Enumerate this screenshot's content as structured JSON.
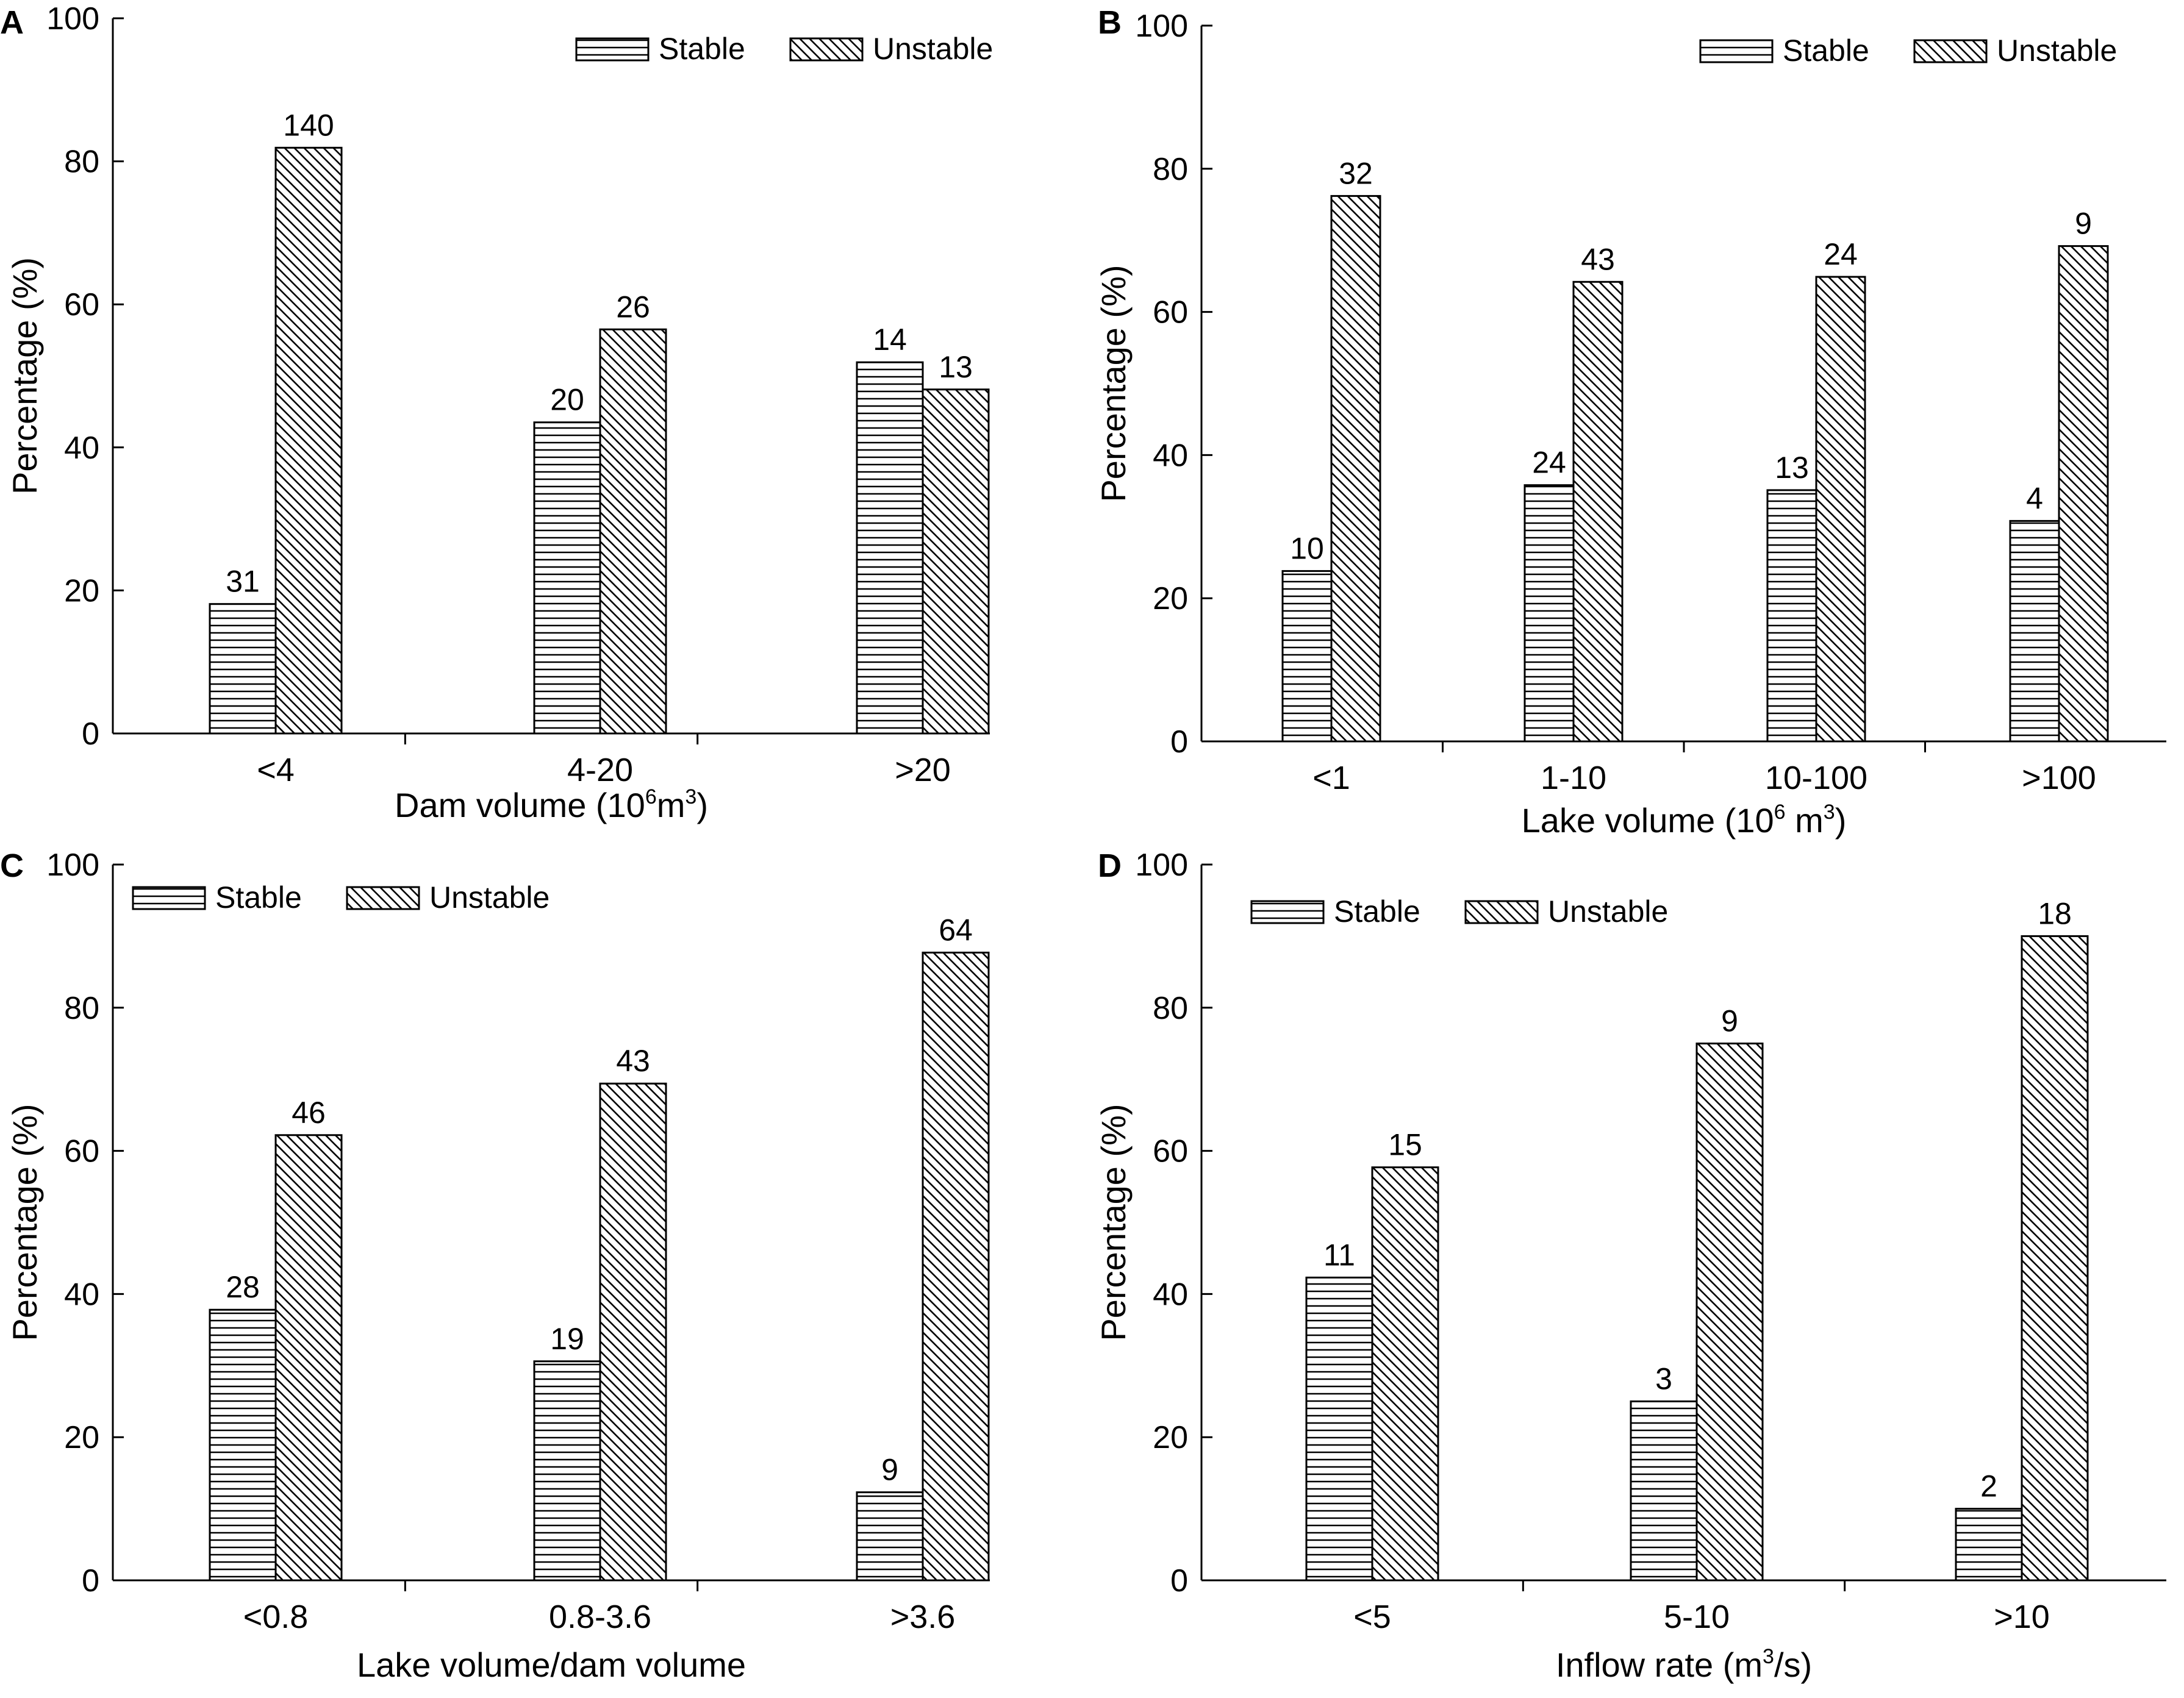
{
  "chart_data": [
    {
      "panel": "A",
      "type": "bar",
      "categories": [
        "<4",
        "4-20",
        ">20"
      ],
      "series": [
        {
          "name": "Stable",
          "pattern": "horizontal",
          "values": [
            18.1,
            43.5,
            51.9
          ],
          "labels": [
            "31",
            "20",
            "14"
          ]
        },
        {
          "name": "Unstable",
          "pattern": "diagonal",
          "values": [
            81.9,
            56.5,
            48.1
          ],
          "labels": [
            "140",
            "26",
            "13"
          ]
        }
      ],
      "ylim": [
        0,
        100
      ],
      "yticks": [
        "0",
        "20",
        "40",
        "60",
        "80",
        "100"
      ],
      "ylabel": "Percentage (%)",
      "xlabel": {
        "prefix": "Dam volume (10",
        "sup1": "6",
        "mid": "m",
        "sup2": "3",
        "suffix": ")"
      },
      "legend_position": "top-right"
    },
    {
      "panel": "B",
      "type": "bar",
      "categories": [
        "<1",
        "1-10",
        "10-100",
        ">100"
      ],
      "series": [
        {
          "name": "Stable",
          "pattern": "horizontal",
          "values": [
            23.8,
            35.8,
            35.1,
            30.8
          ],
          "labels": [
            "10",
            "24",
            "13",
            "4"
          ]
        },
        {
          "name": "Unstable",
          "pattern": "diagonal",
          "values": [
            76.2,
            64.2,
            64.9,
            69.2
          ],
          "labels": [
            "32",
            "43",
            "24",
            "9"
          ]
        }
      ],
      "ylim": [
        0,
        100
      ],
      "yticks": [
        "0",
        "20",
        "40",
        "60",
        "80",
        "100"
      ],
      "ylabel": "Percentage (%)",
      "xlabel": {
        "prefix": "Lake volume (10",
        "sup1": "6",
        "mid": " m",
        "sup2": "3",
        "suffix": ")"
      },
      "legend_position": "top-right"
    },
    {
      "panel": "C",
      "type": "bar",
      "categories": [
        "<0.8",
        "0.8-3.6",
        ">3.6"
      ],
      "series": [
        {
          "name": "Stable",
          "pattern": "horizontal",
          "values": [
            37.8,
            30.6,
            12.3
          ],
          "labels": [
            "28",
            "19",
            "9"
          ]
        },
        {
          "name": "Unstable",
          "pattern": "diagonal",
          "values": [
            62.2,
            69.4,
            87.7
          ],
          "labels": [
            "46",
            "43",
            "64"
          ]
        }
      ],
      "ylim": [
        0,
        100
      ],
      "yticks": [
        "0",
        "20",
        "40",
        "60",
        "80",
        "100"
      ],
      "ylabel": "Percentage (%)",
      "xlabel": {
        "prefix": "Lake volume/dam volume",
        "sup1": "",
        "mid": "",
        "sup2": "",
        "suffix": ""
      },
      "legend_position": "top-left"
    },
    {
      "panel": "D",
      "type": "bar",
      "categories": [
        "<5",
        "5-10",
        ">10"
      ],
      "series": [
        {
          "name": "Stable",
          "pattern": "horizontal",
          "values": [
            42.3,
            25.0,
            10.0
          ],
          "labels": [
            "11",
            "3",
            "2"
          ]
        },
        {
          "name": "Unstable",
          "pattern": "diagonal",
          "values": [
            57.7,
            75.0,
            90.0
          ],
          "labels": [
            "15",
            "9",
            "18"
          ]
        }
      ],
      "ylim": [
        0,
        100
      ],
      "yticks": [
        "0",
        "20",
        "40",
        "60",
        "80",
        "100"
      ],
      "ylabel": "Percentage (%)",
      "xlabel": {
        "prefix": "Inflow rate (m",
        "sup1": "",
        "mid": "",
        "sup2": "3",
        "suffix": "/s)"
      },
      "legend_position": "top-left"
    }
  ]
}
